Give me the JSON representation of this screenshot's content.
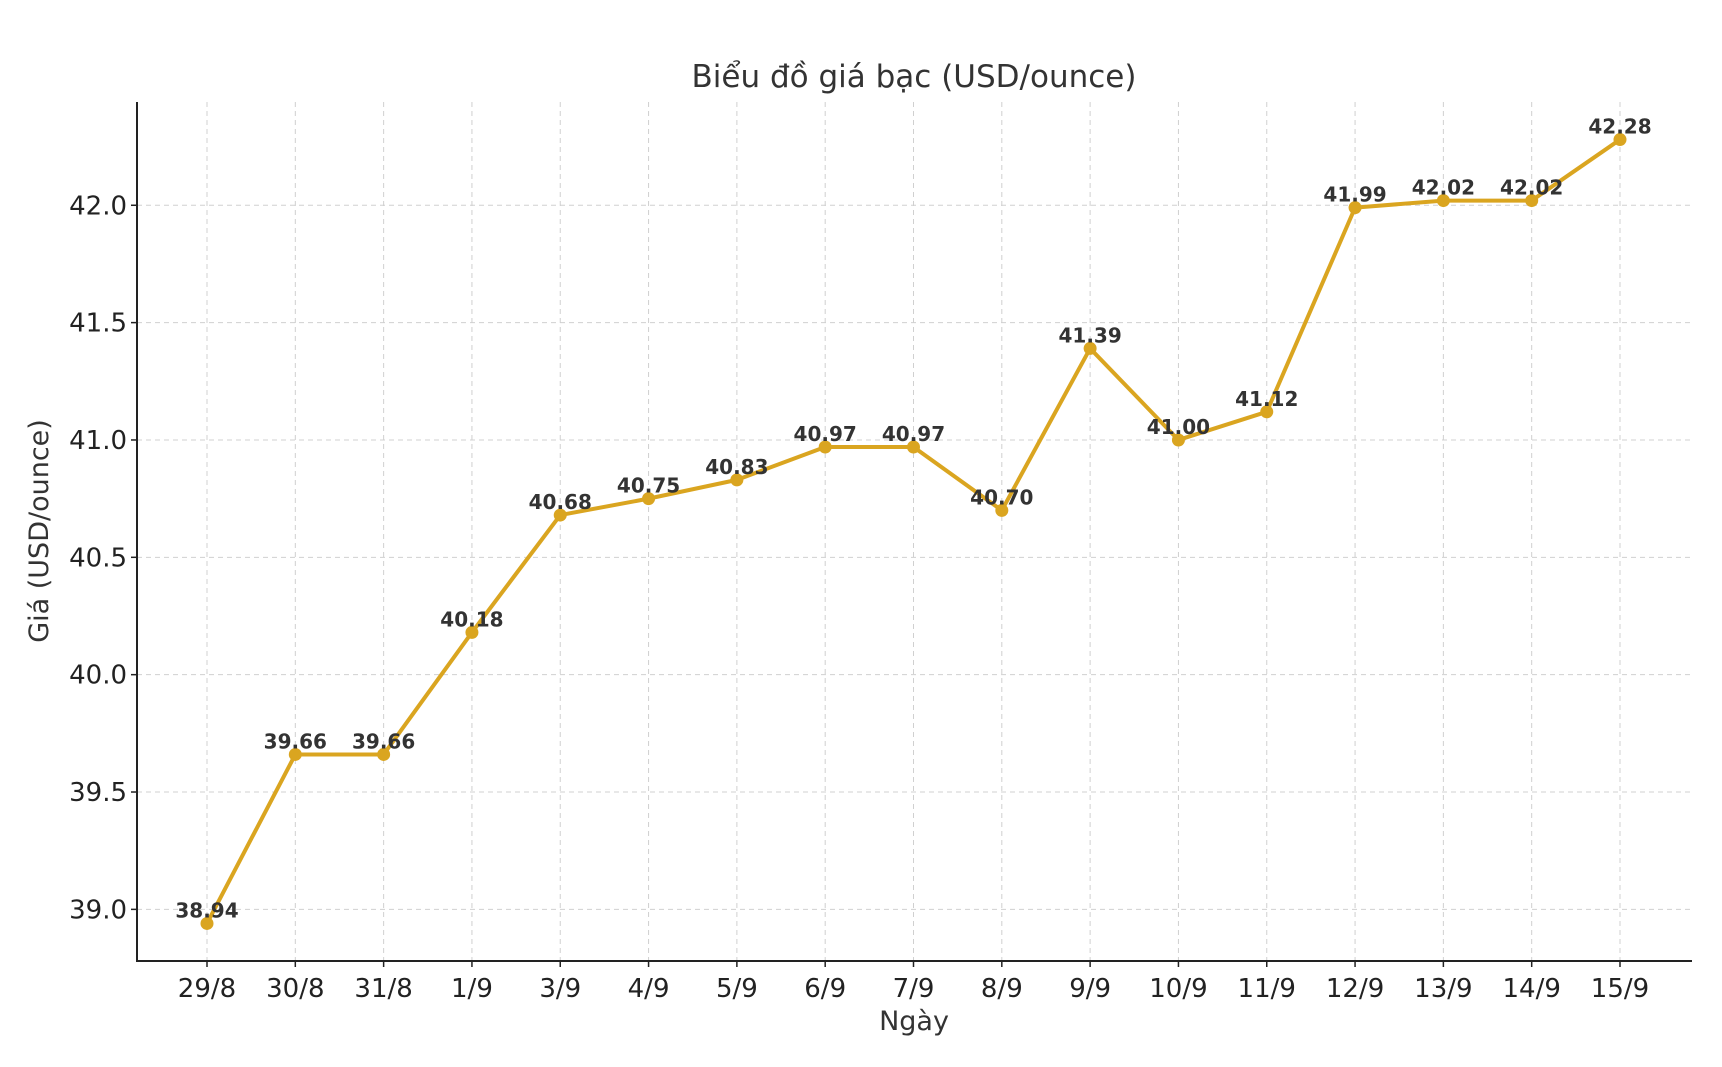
{
  "chart_data": {
    "type": "line",
    "title": "Biểu đồ giá bạc (USD/ounce)",
    "xlabel": "Ngày",
    "ylabel": "Giá (USD/ounce)",
    "categories": [
      "29/8",
      "30/8",
      "31/8",
      "1/9",
      "3/9",
      "4/9",
      "5/9",
      "6/9",
      "7/9",
      "8/9",
      "9/9",
      "10/9",
      "11/9",
      "12/9",
      "13/9",
      "14/9",
      "15/9"
    ],
    "series": [
      {
        "values": [
          38.94,
          39.66,
          39.66,
          40.18,
          40.68,
          40.75,
          40.83,
          40.97,
          40.97,
          40.7,
          41.39,
          41.0,
          41.12,
          41.99,
          42.02,
          42.02,
          42.28
        ],
        "data_labels": [
          "38.94",
          "39.66",
          "39.66",
          "40.18",
          "40.68",
          "40.75",
          "40.83",
          "40.97",
          "40.97",
          "40.70",
          "41.39",
          "41.00",
          "41.12",
          "41.99",
          "42.02",
          "42.02",
          "42.28"
        ],
        "color": "#DAA520",
        "marker": "circle"
      }
    ],
    "yticks": [
      "39.0",
      "39.5",
      "40.0",
      "40.5",
      "41.0",
      "41.5",
      "42.0"
    ],
    "ylim": [
      38.78,
      42.44
    ],
    "grid": true,
    "legend": "none"
  }
}
